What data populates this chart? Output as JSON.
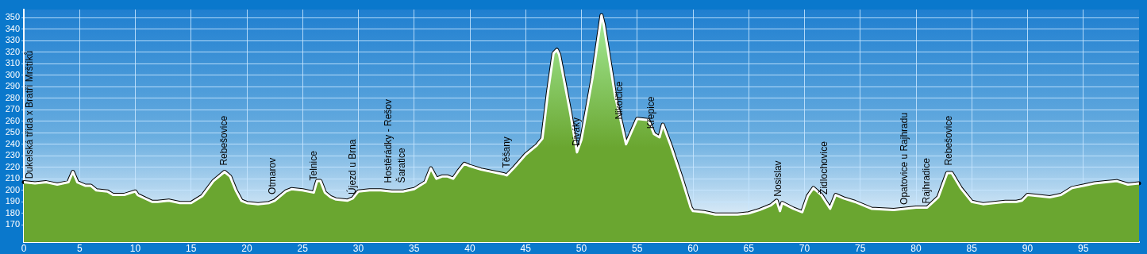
{
  "chart_data": {
    "type": "area",
    "x": [
      0,
      1,
      2,
      3,
      4,
      4.4,
      4.8,
      5.5,
      6,
      6.5,
      7.5,
      8,
      9,
      10,
      10.2,
      11.5,
      12,
      13,
      14,
      15,
      16,
      17,
      18,
      18.5,
      19,
      19.5,
      20,
      21,
      22,
      22.5,
      23.5,
      24,
      25,
      26,
      26.3,
      26.6,
      27,
      27.5,
      28,
      29,
      29.5,
      30,
      31,
      32,
      33,
      34,
      35,
      36,
      36.5,
      37,
      37.5,
      38,
      38.5,
      39,
      39.5,
      40,
      41,
      43,
      43.3,
      44,
      45,
      46,
      46.5,
      47,
      47.5,
      47.8,
      48,
      49,
      49.6,
      50,
      51,
      51.8,
      52,
      53,
      54,
      54.5,
      55,
      56,
      56.5,
      57,
      57.3,
      58,
      59,
      59.8,
      60,
      61,
      62,
      64,
      65,
      66,
      67,
      67.5,
      67.8,
      68,
      69,
      69.8,
      70.3,
      70.8,
      71.5,
      72.3,
      72.8,
      73.5,
      74.5,
      76,
      78,
      79,
      80,
      81,
      82,
      82.8,
      83.2,
      84,
      85,
      86,
      87,
      88,
      89,
      89.5,
      90,
      91,
      92,
      93,
      94,
      95,
      96,
      97,
      98,
      99,
      100
    ],
    "series": [
      {
        "color": "#6aa630",
        "values": [
          207,
          206,
          207,
          205,
          207,
          216,
          207,
          204,
          204,
          200,
          199,
          196,
          196,
          199,
          196,
          190,
          190,
          191,
          189,
          189,
          195,
          208,
          216,
          212,
          200,
          191,
          189,
          188,
          189,
          191,
          199,
          201,
          200,
          198,
          208,
          208,
          198,
          194,
          192,
          191,
          193,
          199,
          200,
          200,
          199,
          199,
          201,
          207,
          219,
          210,
          212,
          212,
          210,
          217,
          223,
          221,
          218,
          214,
          213,
          220,
          231,
          239,
          245,
          285,
          319,
          322,
          318,
          267,
          233,
          244,
          298,
          352,
          344,
          283,
          240,
          251,
          262,
          261,
          249,
          246,
          257,
          239,
          210,
          185,
          182,
          181,
          179,
          179,
          180,
          183,
          187,
          191,
          182,
          189,
          184,
          181,
          195,
          202,
          196,
          184,
          196,
          193,
          190,
          184,
          183,
          184,
          185,
          185,
          194,
          215,
          215,
          202,
          190,
          188,
          189,
          190,
          190,
          191,
          196,
          195,
          194,
          196,
          202,
          204,
          206,
          207,
          208,
          205,
          206
        ]
      }
    ],
    "xlim": [
      0,
      100
    ],
    "xticks": [
      0,
      5,
      10,
      15,
      20,
      25,
      30,
      35,
      40,
      45,
      50,
      55,
      60,
      65,
      70,
      75,
      80,
      85,
      90,
      95
    ],
    "ylim": [
      155,
      357
    ],
    "yticks": [
      170,
      180,
      190,
      200,
      210,
      220,
      230,
      240,
      250,
      260,
      270,
      280,
      290,
      300,
      310,
      320,
      330,
      340,
      350
    ],
    "grid": true,
    "legend": false,
    "marker": "none",
    "line_style": "solid",
    "annotations": [
      {
        "text": "Dukelská třída x Bratří Mrštíků",
        "x": 0.5,
        "y": 206.5
      },
      {
        "text": "Rebešovice",
        "x": 18,
        "y": 218
      },
      {
        "text": "Otmarov",
        "x": 22.3,
        "y": 193
      },
      {
        "text": "Telnice",
        "x": 26,
        "y": 205
      },
      {
        "text": "Újezd u Brna",
        "x": 29.5,
        "y": 193
      },
      {
        "text": "Hostěrádky - Rešov",
        "x": 32.7,
        "y": 203
      },
      {
        "text": "Šaratice",
        "x": 33.9,
        "y": 203
      },
      {
        "text": "Těšany",
        "x": 43.3,
        "y": 216
      },
      {
        "text": "Diváky",
        "x": 49.6,
        "y": 235
      },
      {
        "text": "Nikolčice",
        "x": 53.4,
        "y": 258
      },
      {
        "text": "Křepice",
        "x": 56.3,
        "y": 250
      },
      {
        "text": "Nosislav",
        "x": 67.7,
        "y": 191
      },
      {
        "text": "Židlochovice",
        "x": 71.8,
        "y": 193
      },
      {
        "text": "Opatovice u Rajhradu",
        "x": 79,
        "y": 184
      },
      {
        "text": "Rajhradice",
        "x": 81,
        "y": 185
      },
      {
        "text": "Rebešovice",
        "x": 83,
        "y": 218
      }
    ]
  }
}
